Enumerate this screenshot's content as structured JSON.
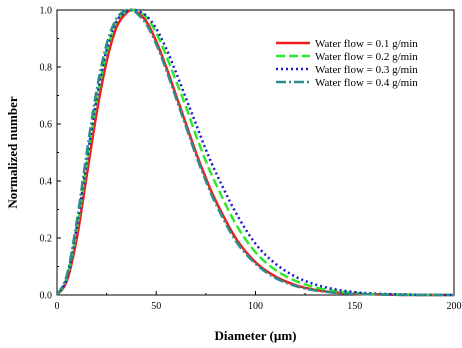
{
  "chart_data": {
    "type": "line",
    "xlabel": "Diameter (µm)",
    "ylabel": "Normalized number",
    "xlim": [
      0,
      200
    ],
    "ylim": [
      0,
      1.0
    ],
    "x_ticks": [
      "0",
      "50",
      "100",
      "150",
      "200"
    ],
    "y_ticks": [
      "0.0",
      "0.2",
      "0.4",
      "0.6",
      "0.8",
      "1.0"
    ],
    "grid": false,
    "legend_position": "top-right",
    "series": [
      {
        "name": "Water flow = 0.1 g/min",
        "color": "#ee1c1c",
        "style": "solid",
        "x": [
          0,
          5,
          10,
          15,
          20,
          25,
          30,
          35,
          38,
          40,
          45,
          50,
          55,
          60,
          65,
          70,
          75,
          80,
          90,
          100,
          110,
          120,
          130,
          140,
          150,
          160,
          180,
          200
        ],
        "y": [
          0,
          0.05,
          0.2,
          0.42,
          0.64,
          0.82,
          0.94,
          0.99,
          1.0,
          0.995,
          0.96,
          0.89,
          0.8,
          0.7,
          0.6,
          0.5,
          0.41,
          0.33,
          0.2,
          0.115,
          0.065,
          0.035,
          0.018,
          0.009,
          0.004,
          0.002,
          0.0,
          0.0
        ]
      },
      {
        "name": "Water flow = 0.2 g/min",
        "color": "#2ee82e",
        "style": "dashed",
        "x": [
          0,
          5,
          10,
          15,
          20,
          25,
          30,
          35,
          38,
          40,
          45,
          50,
          55,
          60,
          65,
          70,
          75,
          80,
          90,
          100,
          110,
          120,
          130,
          140,
          150,
          160,
          180,
          200
        ],
        "y": [
          0,
          0.06,
          0.23,
          0.46,
          0.68,
          0.85,
          0.96,
          0.995,
          1.0,
          0.998,
          0.975,
          0.92,
          0.84,
          0.75,
          0.66,
          0.56,
          0.47,
          0.39,
          0.25,
          0.15,
          0.088,
          0.05,
          0.027,
          0.014,
          0.007,
          0.003,
          0.001,
          0.0
        ]
      },
      {
        "name": "Water flow = 0.3 g/min",
        "color": "#1a1acc",
        "style": "dotted",
        "x": [
          0,
          5,
          10,
          15,
          20,
          25,
          30,
          35,
          38,
          40,
          45,
          50,
          55,
          60,
          65,
          70,
          75,
          80,
          90,
          100,
          110,
          120,
          130,
          140,
          150,
          160,
          180,
          200
        ],
        "y": [
          0,
          0.06,
          0.24,
          0.47,
          0.69,
          0.86,
          0.96,
          0.995,
          1.0,
          0.999,
          0.98,
          0.935,
          0.865,
          0.78,
          0.69,
          0.6,
          0.51,
          0.43,
          0.29,
          0.18,
          0.11,
          0.065,
          0.037,
          0.02,
          0.01,
          0.005,
          0.001,
          0.0
        ]
      },
      {
        "name": "Water flow = 0.4 g/min",
        "color": "#2e8b8b",
        "style": "dashdot",
        "x": [
          0,
          5,
          10,
          15,
          20,
          25,
          30,
          35,
          38,
          40,
          45,
          50,
          55,
          60,
          65,
          70,
          75,
          80,
          90,
          100,
          110,
          120,
          130,
          140,
          150,
          160,
          180,
          200
        ],
        "y": [
          0,
          0.07,
          0.26,
          0.5,
          0.72,
          0.88,
          0.97,
          1.0,
          0.998,
          0.99,
          0.95,
          0.88,
          0.79,
          0.69,
          0.59,
          0.49,
          0.4,
          0.32,
          0.19,
          0.11,
          0.06,
          0.032,
          0.016,
          0.008,
          0.004,
          0.002,
          0.0,
          0.0
        ]
      }
    ]
  }
}
